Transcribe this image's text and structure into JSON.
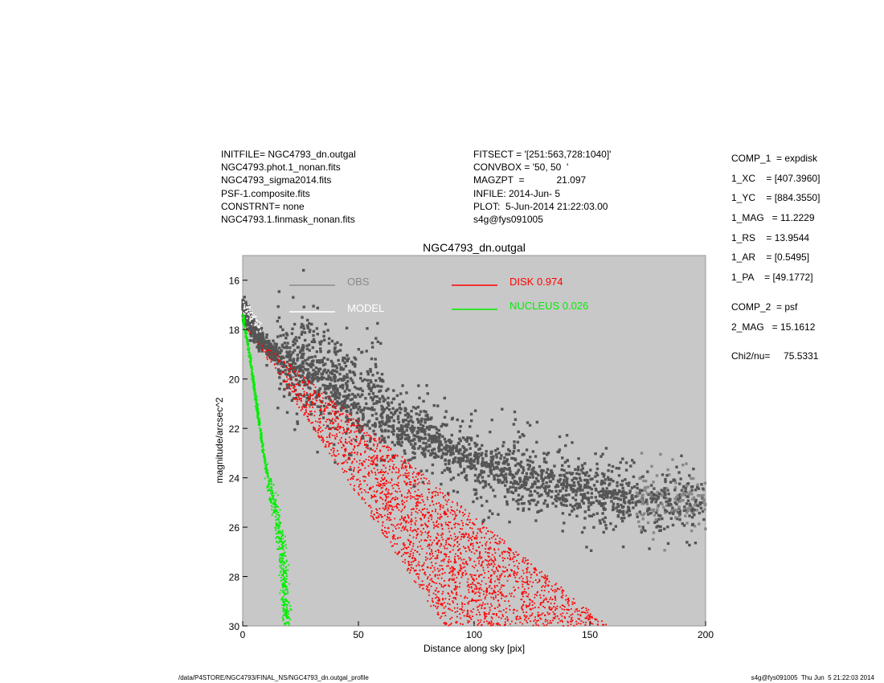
{
  "header_left": [
    "INITFILE= NGC4793_dn.outgal",
    "NGC4793.phot.1_nonan.fits",
    "NGC4793_sigma2014.fits",
    "PSF-1.composite.fits",
    "CONSTRNT= none",
    "NGC4793.1.finmask_nonan.fits"
  ],
  "header_mid": [
    "FITSECT = '[251:563,728:1040]'",
    "CONVBOX = '50, 50  '",
    "MAGZPT  =            21.097",
    "INFILE: 2014-Jun- 5",
    "PLOT:  5-Jun-2014 21:22:03.00",
    "s4g@fys091005"
  ],
  "params": {
    "comp1": "COMP_1  = expdisk",
    "xc": "1_XC    = [407.3960]",
    "yc": "1_YC    = [884.3550]",
    "mag": "1_MAG   = 11.2229",
    "rs": "1_RS    = 13.9544",
    "ar": "1_AR    = [0.5495]",
    "pa": "1_PA    = [49.1772]",
    "comp2": "COMP_2  = psf",
    "mag2": "2_MAG   = 15.1612",
    "chi": "Chi2/nu=     75.5331"
  },
  "footer": {
    "left": "/data/P4STORE/NGC4793/FINAL_NS/NGC4793_dn.outgal_profile",
    "right": "s4g@fys091005  Thu Jun  5 21:22:03 2014"
  },
  "chart_data": {
    "type": "scatter",
    "title": "NGC4793_dn.outgal",
    "xlabel": "Distance along sky [pix]",
    "ylabel": "magnitude/arcsec^2",
    "xlim": [
      0,
      200
    ],
    "ylim": [
      30,
      15
    ],
    "y_inverted": true,
    "xticks": [
      "0",
      "50",
      "100",
      "150",
      "200"
    ],
    "yticks": [
      "16",
      "18",
      "20",
      "22",
      "24",
      "26",
      "28",
      "30"
    ],
    "grid": false,
    "background": "#c8c8c8",
    "legend": [
      {
        "label": "OBS",
        "color": "#8a8a8a"
      },
      {
        "label": "MODEL",
        "color": "#ffffff"
      },
      {
        "label": "DISK  0.974",
        "color": "#ff0000"
      },
      {
        "label": "NUCLEUS  0.026",
        "color": "#00ee00"
      }
    ],
    "series": [
      {
        "name": "OBS",
        "color": "#555555",
        "approx_profile": [
          [
            1,
            17.2
          ],
          [
            5,
            18.1
          ],
          [
            10,
            18.7
          ],
          [
            20,
            19.3
          ],
          [
            30,
            19.9
          ],
          [
            50,
            21.0
          ],
          [
            75,
            22.2
          ],
          [
            100,
            23.3
          ],
          [
            125,
            24.1
          ],
          [
            150,
            24.6
          ],
          [
            175,
            24.9
          ],
          [
            200,
            25.0
          ]
        ]
      },
      {
        "name": "DISK",
        "color": "#ff0000",
        "band_upper": [
          [
            2,
            18.0
          ],
          [
            158,
            30.0
          ]
        ],
        "band_lower": [
          [
            2,
            18.0
          ],
          [
            87,
            30.0
          ]
        ]
      },
      {
        "name": "NUCLEUS",
        "color": "#00ee00",
        "approx_profile": [
          [
            0,
            17.4
          ],
          [
            3,
            19.0
          ],
          [
            6,
            21.0
          ],
          [
            9,
            23.0
          ],
          [
            12,
            24.5
          ],
          [
            15,
            25.6
          ],
          [
            17,
            27.0
          ],
          [
            18,
            28.5
          ],
          [
            19,
            30.0
          ]
        ]
      }
    ]
  }
}
